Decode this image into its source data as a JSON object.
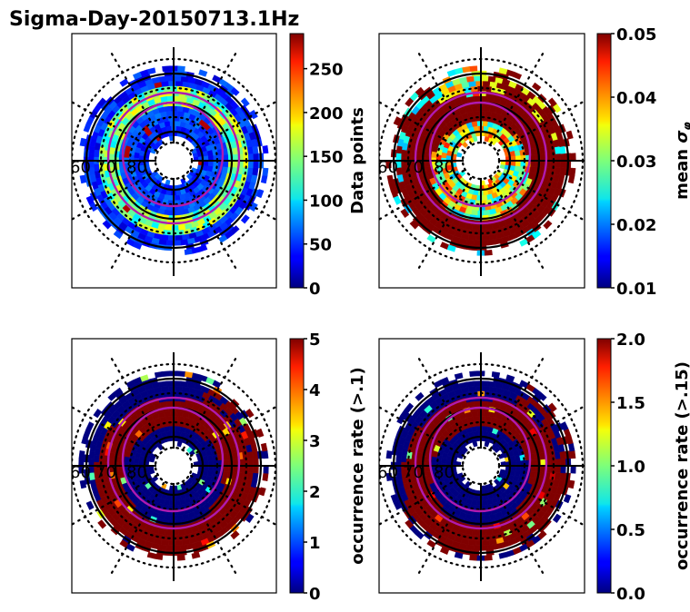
{
  "figure": {
    "title": "Sigma-Day-20150713.1Hz"
  },
  "chart_data": [
    {
      "type": "heatmap",
      "projection": "polar (magnetic latitude / MLT dial)",
      "panel": "top-left",
      "title": "",
      "latitude_labels": [
        "60",
        "70",
        "80"
      ],
      "latitude_rings": [
        60,
        70,
        80
      ],
      "colorbar": {
        "label": "Data points",
        "range": [
          0,
          290
        ],
        "ticks": [
          0,
          50,
          100,
          150,
          200,
          250
        ],
        "tick_labels": [
          "0",
          "50",
          "100",
          "150",
          "200",
          "250"
        ],
        "colormap": "jet"
      },
      "dominant_values": "mostly 0-100 (blue), ring of 150-220 (cyan-yellow) near 65-70 deg, isolated max ~290 on night side"
    },
    {
      "type": "heatmap",
      "projection": "polar (magnetic latitude / MLT dial)",
      "panel": "top-right",
      "title": "",
      "latitude_labels": [
        "60",
        "70",
        "80"
      ],
      "latitude_rings": [
        60,
        70,
        80
      ],
      "colorbar": {
        "label": "mean σ_φ",
        "range": [
          0.01,
          0.05
        ],
        "ticks": [
          0.01,
          0.02,
          0.03,
          0.04,
          0.05
        ],
        "tick_labels": [
          "0.01",
          "0.02",
          "0.03",
          "0.04",
          "0.05"
        ],
        "colormap": "jet"
      },
      "dominant_values": "saturated >=0.05 (dark red) across dawn/dusk auroral oval, 0.025-0.04 (cyan-yellow) in polar cap and pre-noon"
    },
    {
      "type": "heatmap",
      "projection": "polar (magnetic latitude / MLT dial)",
      "panel": "bottom-left",
      "title": "",
      "latitude_labels": [
        "60",
        "70",
        "80"
      ],
      "latitude_rings": [
        60,
        70,
        80
      ],
      "colorbar": {
        "label": "occurrence rate (>.1)",
        "range": [
          0,
          5
        ],
        "ticks": [
          0,
          1,
          2,
          3,
          4,
          5
        ],
        "tick_labels": [
          "0",
          "1",
          "2",
          "3",
          "4",
          "5"
        ],
        "colormap": "jet"
      },
      "dominant_values": "0 (dark blue) in polar cap and outer, >=5 (dark red) in auroral oval band"
    },
    {
      "type": "heatmap",
      "projection": "polar (magnetic latitude / MLT dial)",
      "panel": "bottom-right",
      "title": "",
      "latitude_labels": [
        "60",
        "70",
        "80"
      ],
      "latitude_rings": [
        60,
        70,
        80
      ],
      "colorbar": {
        "label": "occurrence rate (>.15)",
        "range": [
          0,
          2
        ],
        "ticks": [
          0.0,
          0.5,
          1.0,
          1.5,
          2.0
        ],
        "tick_labels": [
          "0.0",
          "0.5",
          "1.0",
          "1.5",
          "2.0"
        ],
        "colormap": "jet"
      },
      "dominant_values": "0 (dark blue) dominant, >=2 (dark red) in auroral oval band"
    }
  ],
  "overlay": {
    "oval_color": "#b01ab0",
    "ring_color": "#000000",
    "grid_style": "dotted"
  }
}
